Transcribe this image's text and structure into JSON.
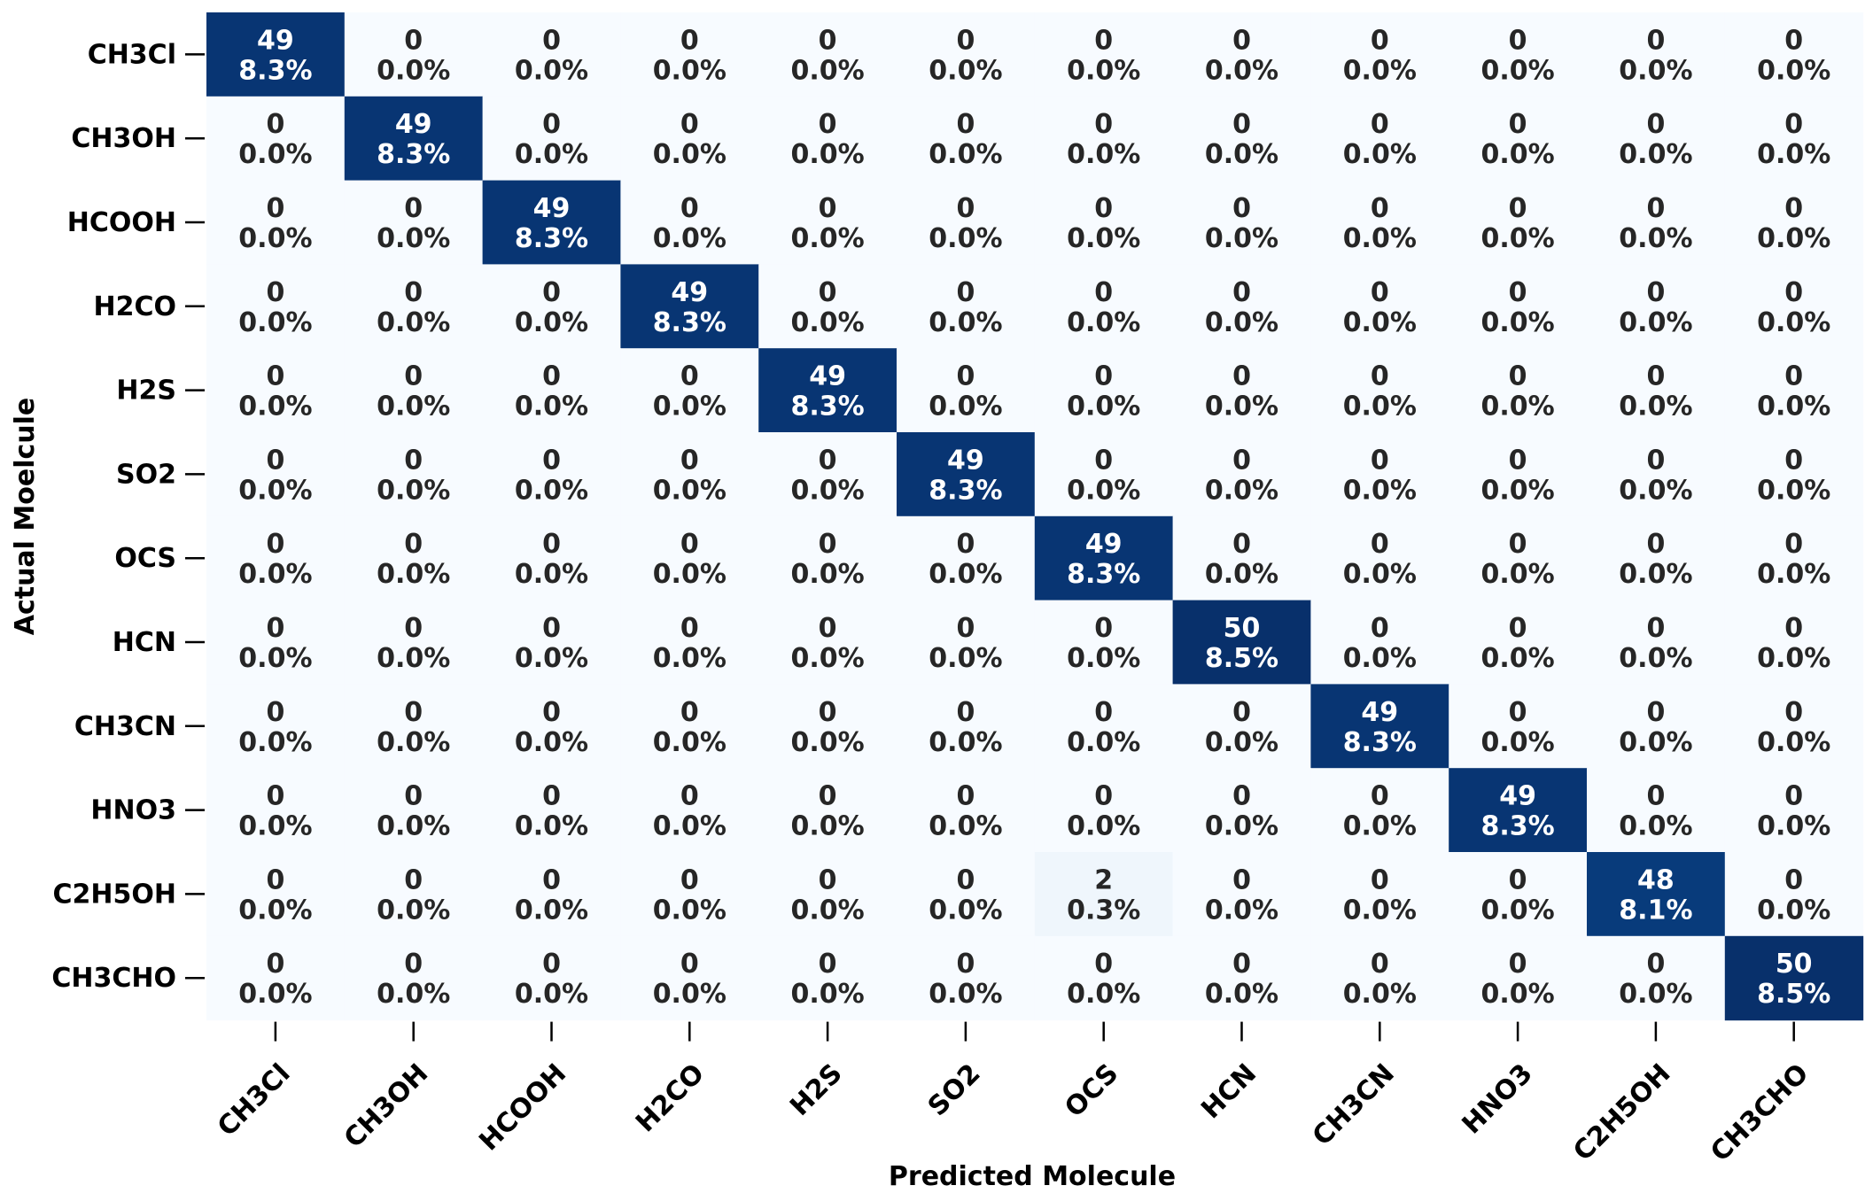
{
  "chart_data": {
    "type": "heatmap",
    "xlabel": "Predicted Molecule",
    "ylabel": "Actual Moelcule",
    "row_labels": [
      "CH3Cl",
      "CH3OH",
      "HCOOH",
      "H2CO",
      "H2S",
      "SO2",
      "OCS",
      "HCN",
      "CH3CN",
      "HNO3",
      "C2H5OH",
      "CH3CHO"
    ],
    "col_labels": [
      "CH3Cl",
      "CH3OH",
      "HCOOH",
      "H2CO",
      "H2S",
      "SO2",
      "OCS",
      "HCN",
      "CH3CN",
      "HNO3",
      "C2H5OH",
      "CH3CHO"
    ],
    "values": [
      [
        49,
        0,
        0,
        0,
        0,
        0,
        0,
        0,
        0,
        0,
        0,
        0
      ],
      [
        0,
        49,
        0,
        0,
        0,
        0,
        0,
        0,
        0,
        0,
        0,
        0
      ],
      [
        0,
        0,
        49,
        0,
        0,
        0,
        0,
        0,
        0,
        0,
        0,
        0
      ],
      [
        0,
        0,
        0,
        49,
        0,
        0,
        0,
        0,
        0,
        0,
        0,
        0
      ],
      [
        0,
        0,
        0,
        0,
        49,
        0,
        0,
        0,
        0,
        0,
        0,
        0
      ],
      [
        0,
        0,
        0,
        0,
        0,
        49,
        0,
        0,
        0,
        0,
        0,
        0
      ],
      [
        0,
        0,
        0,
        0,
        0,
        0,
        49,
        0,
        0,
        0,
        0,
        0
      ],
      [
        0,
        0,
        0,
        0,
        0,
        0,
        0,
        50,
        0,
        0,
        0,
        0
      ],
      [
        0,
        0,
        0,
        0,
        0,
        0,
        0,
        0,
        49,
        0,
        0,
        0
      ],
      [
        0,
        0,
        0,
        0,
        0,
        0,
        0,
        0,
        0,
        49,
        0,
        0
      ],
      [
        0,
        0,
        0,
        0,
        0,
        0,
        2,
        0,
        0,
        0,
        48,
        0
      ],
      [
        0,
        0,
        0,
        0,
        0,
        0,
        0,
        0,
        0,
        0,
        0,
        50
      ]
    ],
    "percentages": [
      [
        "8.3%",
        "0.0%",
        "0.0%",
        "0.0%",
        "0.0%",
        "0.0%",
        "0.0%",
        "0.0%",
        "0.0%",
        "0.0%",
        "0.0%",
        "0.0%"
      ],
      [
        "0.0%",
        "8.3%",
        "0.0%",
        "0.0%",
        "0.0%",
        "0.0%",
        "0.0%",
        "0.0%",
        "0.0%",
        "0.0%",
        "0.0%",
        "0.0%"
      ],
      [
        "0.0%",
        "0.0%",
        "8.3%",
        "0.0%",
        "0.0%",
        "0.0%",
        "0.0%",
        "0.0%",
        "0.0%",
        "0.0%",
        "0.0%",
        "0.0%"
      ],
      [
        "0.0%",
        "0.0%",
        "0.0%",
        "8.3%",
        "0.0%",
        "0.0%",
        "0.0%",
        "0.0%",
        "0.0%",
        "0.0%",
        "0.0%",
        "0.0%"
      ],
      [
        "0.0%",
        "0.0%",
        "0.0%",
        "0.0%",
        "8.3%",
        "0.0%",
        "0.0%",
        "0.0%",
        "0.0%",
        "0.0%",
        "0.0%",
        "0.0%"
      ],
      [
        "0.0%",
        "0.0%",
        "0.0%",
        "0.0%",
        "0.0%",
        "8.3%",
        "0.0%",
        "0.0%",
        "0.0%",
        "0.0%",
        "0.0%",
        "0.0%"
      ],
      [
        "0.0%",
        "0.0%",
        "0.0%",
        "0.0%",
        "0.0%",
        "0.0%",
        "8.3%",
        "0.0%",
        "0.0%",
        "0.0%",
        "0.0%",
        "0.0%"
      ],
      [
        "0.0%",
        "0.0%",
        "0.0%",
        "0.0%",
        "0.0%",
        "0.0%",
        "0.0%",
        "8.5%",
        "0.0%",
        "0.0%",
        "0.0%",
        "0.0%"
      ],
      [
        "0.0%",
        "0.0%",
        "0.0%",
        "0.0%",
        "0.0%",
        "0.0%",
        "0.0%",
        "0.0%",
        "8.3%",
        "0.0%",
        "0.0%",
        "0.0%"
      ],
      [
        "0.0%",
        "0.0%",
        "0.0%",
        "0.0%",
        "0.0%",
        "0.0%",
        "0.0%",
        "0.0%",
        "0.0%",
        "8.3%",
        "0.0%",
        "0.0%"
      ],
      [
        "0.0%",
        "0.0%",
        "0.0%",
        "0.0%",
        "0.0%",
        "0.0%",
        "0.3%",
        "0.0%",
        "0.0%",
        "0.0%",
        "8.1%",
        "0.0%"
      ],
      [
        "0.0%",
        "0.0%",
        "0.0%",
        "0.0%",
        "0.0%",
        "0.0%",
        "0.0%",
        "0.0%",
        "0.0%",
        "0.0%",
        "0.0%",
        "8.5%"
      ]
    ],
    "colormap": "Blues",
    "color_low": "#f7fbff",
    "color_high": "#08306b",
    "text_color_dark": "#262626",
    "text_color_light": "#ffffff",
    "colorbar": false,
    "grid": false
  }
}
